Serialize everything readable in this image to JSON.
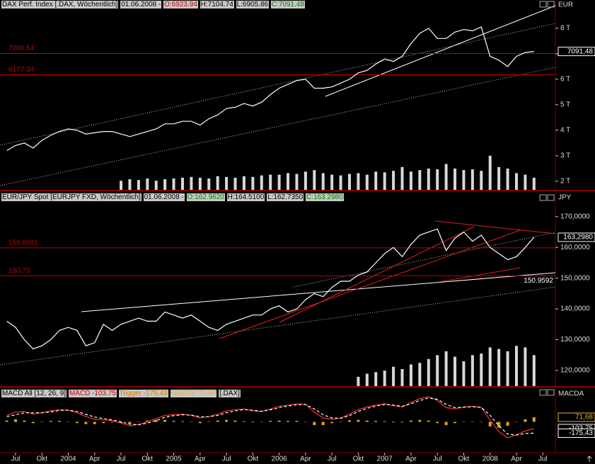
{
  "chart_data": [
    {
      "type": "line",
      "header": [
        {
          "text": "DAX Perf. Index [.DAX, Wöchentlich]",
          "color": "#000000"
        },
        {
          "text": "01.06.2008 -",
          "color": "#000000"
        },
        {
          "text": "O:6923.94",
          "color": "#d00000"
        },
        {
          "text": "H:7104.74",
          "color": "#000000"
        },
        {
          "text": "L:6905.86",
          "color": "#000000"
        },
        {
          "text": "C:7091.48",
          "color": "#008000"
        }
      ],
      "unit": "EUR",
      "xlim": [
        4.23,
        67.43
      ],
      "ylim": [
        1660,
        9110
      ],
      "y2lim": [
        0,
        250
      ],
      "yticks": [
        {
          "value": 2000,
          "label": "2 T"
        },
        {
          "value": 3000,
          "label": "3 T"
        },
        {
          "value": 4000,
          "label": "4 T"
        },
        {
          "value": 5000,
          "label": "5 T"
        },
        {
          "value": 6000,
          "label": "6 T"
        },
        {
          "value": 7000,
          "label": "7 T"
        },
        {
          "value": 8000,
          "label": "8 T"
        }
      ],
      "levels": [
        7009.54,
        6177.34
      ],
      "level_color": "#c00000",
      "value_markers": [
        {
          "value": 7091.48,
          "label": "7091,48",
          "color": "#ffffff"
        }
      ],
      "series": [
        {
          "color": "#ffffff",
          "x": [
            5,
            6,
            7,
            8,
            9,
            10,
            11,
            12,
            13,
            14,
            15,
            16,
            17,
            18,
            19,
            20,
            21,
            22,
            23,
            24,
            25,
            26,
            27,
            28,
            29,
            30,
            31,
            32,
            33,
            34,
            35,
            36,
            37,
            38,
            39,
            40,
            41,
            42,
            43,
            44,
            45,
            46,
            47,
            48,
            49,
            50,
            51,
            52,
            53,
            54,
            55,
            56,
            57,
            58,
            59,
            60,
            61,
            62,
            63,
            64,
            65
          ],
          "values": [
            3200,
            3400,
            3500,
            3300,
            3600,
            3800,
            3950,
            4050,
            4000,
            3850,
            3900,
            3950,
            3950,
            3850,
            3750,
            3850,
            3950,
            4050,
            4250,
            4250,
            4350,
            4350,
            4200,
            4450,
            4600,
            4850,
            4900,
            5050,
            4950,
            5100,
            5400,
            5650,
            5800,
            5950,
            6000,
            5650,
            5650,
            5700,
            5850,
            6000,
            6250,
            6350,
            6600,
            6800,
            6700,
            6900,
            7400,
            7800,
            8000,
            7600,
            7600,
            7850,
            7950,
            7900,
            8050,
            6900,
            6750,
            6500,
            6900,
            7050,
            7091.48
          ]
        },
        {
          "type": "bar",
          "axis": "y2",
          "color": "#d8d8d8",
          "x": [
            18,
            19,
            20,
            21,
            22,
            23,
            24,
            25,
            26,
            27,
            28,
            29,
            30,
            31,
            32,
            33,
            34,
            35,
            36,
            37,
            38,
            39,
            40,
            41,
            42,
            43,
            44,
            45,
            46,
            47,
            48,
            49,
            50,
            51,
            52,
            53,
            54,
            55,
            56,
            57,
            58,
            59,
            60,
            61,
            62,
            63,
            64,
            65
          ],
          "values": [
            12,
            14,
            13,
            15,
            12,
            14,
            15,
            16,
            17,
            16,
            15,
            18,
            17,
            16,
            18,
            17,
            19,
            20,
            20,
            22,
            21,
            24,
            26,
            22,
            20,
            19,
            21,
            22,
            20,
            24,
            23,
            25,
            30,
            24,
            26,
            28,
            27,
            34,
            28,
            26,
            27,
            25,
            45,
            30,
            28,
            22,
            20,
            16
          ]
        }
      ]
    },
    {
      "type": "line",
      "header": [
        {
          "text": "EUR/JPY Spot [EURJPY FXD, Wöchentlich]",
          "color": "#000000"
        },
        {
          "text": "01.06.2008 -",
          "color": "#000000"
        },
        {
          "text": "O:162.9620",
          "color": "#008000"
        },
        {
          "text": "H:164.5100",
          "color": "#000000"
        },
        {
          "text": "L:162.7350",
          "color": "#000000"
        },
        {
          "text": "C:163.2980",
          "color": "#008000"
        }
      ],
      "unit": "JPY",
      "xlim": [
        4.23,
        67.43
      ],
      "ylim": [
        114.9,
        177.8
      ],
      "y2lim": [
        0,
        250
      ],
      "yticks": [
        {
          "value": 120,
          "label": "120,0000"
        },
        {
          "value": 130,
          "label": "130,0000"
        },
        {
          "value": 140,
          "label": "140,0000"
        },
        {
          "value": 150,
          "label": "150,0000"
        },
        {
          "value": 160,
          "label": "160,0000"
        },
        {
          "value": 170,
          "label": "170,0000"
        }
      ],
      "levels": [
        159.8481,
        150.75
      ],
      "level_color": "#c00000",
      "annotations": [
        {
          "value": 150.9592,
          "label": "150.9592"
        }
      ],
      "value_markers": [
        {
          "value": 163.298,
          "label": "163,2980",
          "color": "#ffffff"
        }
      ],
      "series": [
        {
          "color": "#ffffff",
          "x": [
            5,
            6,
            7,
            8,
            9,
            10,
            11,
            12,
            13,
            14,
            15,
            16,
            17,
            18,
            19,
            20,
            21,
            22,
            23,
            24,
            25,
            26,
            27,
            28,
            29,
            30,
            31,
            32,
            33,
            34,
            35,
            36,
            37,
            38,
            39,
            40,
            41,
            42,
            43,
            44,
            45,
            46,
            47,
            48,
            49,
            50,
            51,
            52,
            53,
            54,
            55,
            56,
            57,
            58,
            59,
            60,
            61,
            62,
            63,
            64,
            65
          ],
          "values": [
            136,
            134,
            130,
            127,
            128,
            130,
            133,
            134,
            133,
            128,
            129,
            135,
            133,
            135,
            136,
            137,
            136,
            136,
            139,
            138,
            137,
            138,
            136,
            134,
            133,
            135,
            136,
            137,
            138,
            138,
            140,
            141,
            139,
            140,
            143,
            145,
            144,
            147,
            149,
            149,
            151,
            152,
            155,
            158,
            160,
            157,
            161,
            164,
            165,
            166,
            159,
            163,
            165,
            162,
            164,
            160,
            158,
            156,
            157,
            160,
            163.298
          ]
        },
        {
          "type": "bar",
          "axis": "y2",
          "color": "#d8d8d8",
          "x": [
            45,
            46,
            47,
            48,
            49,
            50,
            51,
            52,
            53,
            54,
            55,
            56,
            57,
            58,
            59,
            60,
            61,
            62,
            63,
            64,
            65
          ],
          "values": [
            12,
            16,
            18,
            20,
            25,
            22,
            28,
            30,
            35,
            40,
            45,
            38,
            32,
            40,
            42,
            50,
            48,
            45,
            52,
            50,
            40
          ]
        }
      ]
    },
    {
      "type": "line",
      "header": [
        {
          "text": "MACD All [12, 26, 9]",
          "color": "#000000"
        },
        {
          "text": "MACD -103.75",
          "color": "#d00000"
        },
        {
          "text": "Trigger -175.43",
          "color": "#d08000"
        },
        {
          "text": "MACDP 71.68",
          "color": "#e0b040"
        },
        {
          "text": "[.DAX]",
          "color": "#000000"
        }
      ],
      "unit": "MACDA",
      "xlim": [
        4.23,
        67.43
      ],
      "ylim": [
        -466,
        510
      ],
      "xticks": [
        {
          "value": 6,
          "label": "Jul"
        },
        {
          "value": 9,
          "label": "Okt"
        },
        {
          "value": 12,
          "label": "2004"
        },
        {
          "value": 15,
          "label": "Apr"
        },
        {
          "value": 18,
          "label": "Jul"
        },
        {
          "value": 21,
          "label": "Okt"
        },
        {
          "value": 24,
          "label": "2005"
        },
        {
          "value": 27,
          "label": "Apr"
        },
        {
          "value": 30,
          "label": "Jul"
        },
        {
          "value": 33,
          "label": "Okt"
        },
        {
          "value": 36,
          "label": "2006"
        },
        {
          "value": 39,
          "label": "Apr"
        },
        {
          "value": 42,
          "label": "Jul"
        },
        {
          "value": 45,
          "label": "Okt"
        },
        {
          "value": 48,
          "label": "2007"
        },
        {
          "value": 51,
          "label": "Apr"
        },
        {
          "value": 54,
          "label": "Jul"
        },
        {
          "value": 57,
          "label": "Okt"
        },
        {
          "value": 60,
          "label": "2008"
        },
        {
          "value": 63,
          "label": "Apr"
        },
        {
          "value": 66,
          "label": "Jul"
        }
      ],
      "value_markers": [
        {
          "value": 71.68,
          "label": "71,68",
          "color": "#e0b040"
        },
        {
          "value": -103.75,
          "label": "-103,75",
          "color": "#ffffff"
        },
        {
          "value": -175.43,
          "label": "-175,43",
          "color": "#ffffff"
        }
      ],
      "series": [
        {
          "type": "bar",
          "color": "#e0a020",
          "x": [
            5,
            6,
            7,
            8,
            9,
            10,
            11,
            12,
            13,
            14,
            15,
            16,
            17,
            18,
            19,
            20,
            21,
            22,
            23,
            24,
            25,
            26,
            27,
            28,
            29,
            30,
            31,
            32,
            33,
            34,
            35,
            36,
            37,
            38,
            39,
            40,
            41,
            42,
            43,
            44,
            45,
            46,
            47,
            48,
            49,
            50,
            51,
            52,
            53,
            54,
            55,
            56,
            57,
            58,
            59,
            60,
            61,
            62,
            63,
            64,
            65
          ],
          "values": [
            20,
            40,
            20,
            -20,
            0,
            15,
            15,
            0,
            -20,
            -35,
            -35,
            -20,
            -10,
            -20,
            -25,
            5,
            20,
            30,
            30,
            15,
            10,
            -5,
            -20,
            0,
            20,
            30,
            20,
            10,
            -10,
            -5,
            15,
            20,
            15,
            15,
            0,
            -50,
            -50,
            -20,
            5,
            25,
            30,
            20,
            15,
            10,
            -10,
            -10,
            20,
            30,
            20,
            -20,
            -50,
            -20,
            5,
            5,
            -5,
            -70,
            -90,
            -60,
            5,
            40,
            71.68
          ]
        },
        {
          "color": "#ff3030",
          "x": [
            5,
            6,
            7,
            8,
            9,
            10,
            11,
            12,
            13,
            14,
            15,
            16,
            17,
            18,
            19,
            20,
            21,
            22,
            23,
            24,
            25,
            26,
            27,
            28,
            29,
            30,
            31,
            32,
            33,
            34,
            35,
            36,
            37,
            38,
            39,
            40,
            41,
            42,
            43,
            44,
            45,
            46,
            47,
            48,
            49,
            50,
            51,
            52,
            53,
            54,
            55,
            56,
            57,
            58,
            59,
            60,
            61,
            62,
            63,
            64,
            65
          ],
          "values": [
            100,
            150,
            160,
            120,
            140,
            170,
            190,
            180,
            140,
            80,
            40,
            30,
            20,
            -20,
            -60,
            -40,
            0,
            50,
            100,
            110,
            120,
            100,
            60,
            80,
            120,
            170,
            190,
            200,
            170,
            160,
            200,
            240,
            260,
            280,
            270,
            150,
            60,
            40,
            60,
            120,
            190,
            230,
            260,
            280,
            250,
            230,
            300,
            360,
            390,
            330,
            220,
            200,
            230,
            240,
            220,
            30,
            -150,
            -250,
            -200,
            -140,
            -103.75
          ]
        },
        {
          "color": "#ffffff",
          "dash": true,
          "x": [
            5,
            6,
            7,
            8,
            9,
            10,
            11,
            12,
            13,
            14,
            15,
            16,
            17,
            18,
            19,
            20,
            21,
            22,
            23,
            24,
            25,
            26,
            27,
            28,
            29,
            30,
            31,
            32,
            33,
            34,
            35,
            36,
            37,
            38,
            39,
            40,
            41,
            42,
            43,
            44,
            45,
            46,
            47,
            48,
            49,
            50,
            51,
            52,
            53,
            54,
            55,
            56,
            57,
            58,
            59,
            60,
            61,
            62,
            63,
            64,
            65
          ],
          "values": [
            80,
            110,
            140,
            140,
            140,
            155,
            175,
            180,
            160,
            115,
            75,
            50,
            30,
            0,
            -35,
            -45,
            -20,
            20,
            70,
            95,
            110,
            105,
            80,
            80,
            100,
            140,
            170,
            190,
            180,
            165,
            185,
            220,
            245,
            265,
            270,
            200,
            110,
            60,
            55,
            95,
            160,
            210,
            245,
            270,
            260,
            240,
            280,
            330,
            370,
            350,
            270,
            220,
            225,
            235,
            225,
            100,
            -60,
            -190,
            -205,
            -180,
            -175.43
          ]
        }
      ]
    }
  ]
}
